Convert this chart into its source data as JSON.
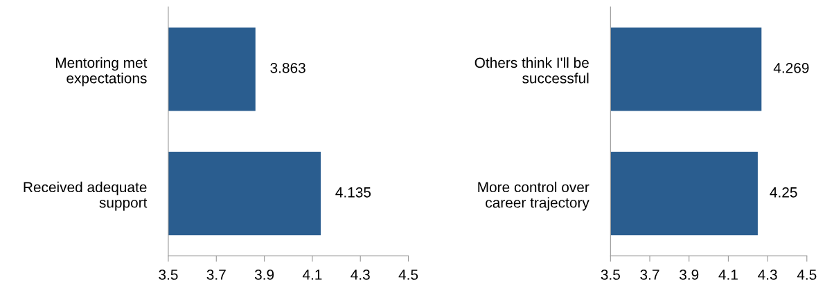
{
  "chart_data": [
    {
      "type": "bar",
      "orientation": "horizontal",
      "categories": [
        "Mentoring met\nexpectations",
        "Received adequate\nsupport"
      ],
      "values": [
        3.863,
        4.135
      ],
      "color": "#2a5d8f",
      "xlim": [
        3.5,
        4.5
      ],
      "xticks": [
        3.5,
        3.7,
        3.9,
        4.1,
        4.3,
        4.5
      ],
      "data_labels": true,
      "grid": false,
      "legend": false
    },
    {
      "type": "bar",
      "orientation": "horizontal",
      "categories": [
        "Others think I'll be\nsuccessful",
        "More control over\ncareer trajectory"
      ],
      "values": [
        4.269,
        4.25
      ],
      "color": "#2a5d8f",
      "xlim": [
        3.5,
        4.5
      ],
      "xticks": [
        3.5,
        3.7,
        3.9,
        4.1,
        4.3,
        4.5
      ],
      "data_labels": true,
      "grid": false,
      "legend": false
    }
  ]
}
